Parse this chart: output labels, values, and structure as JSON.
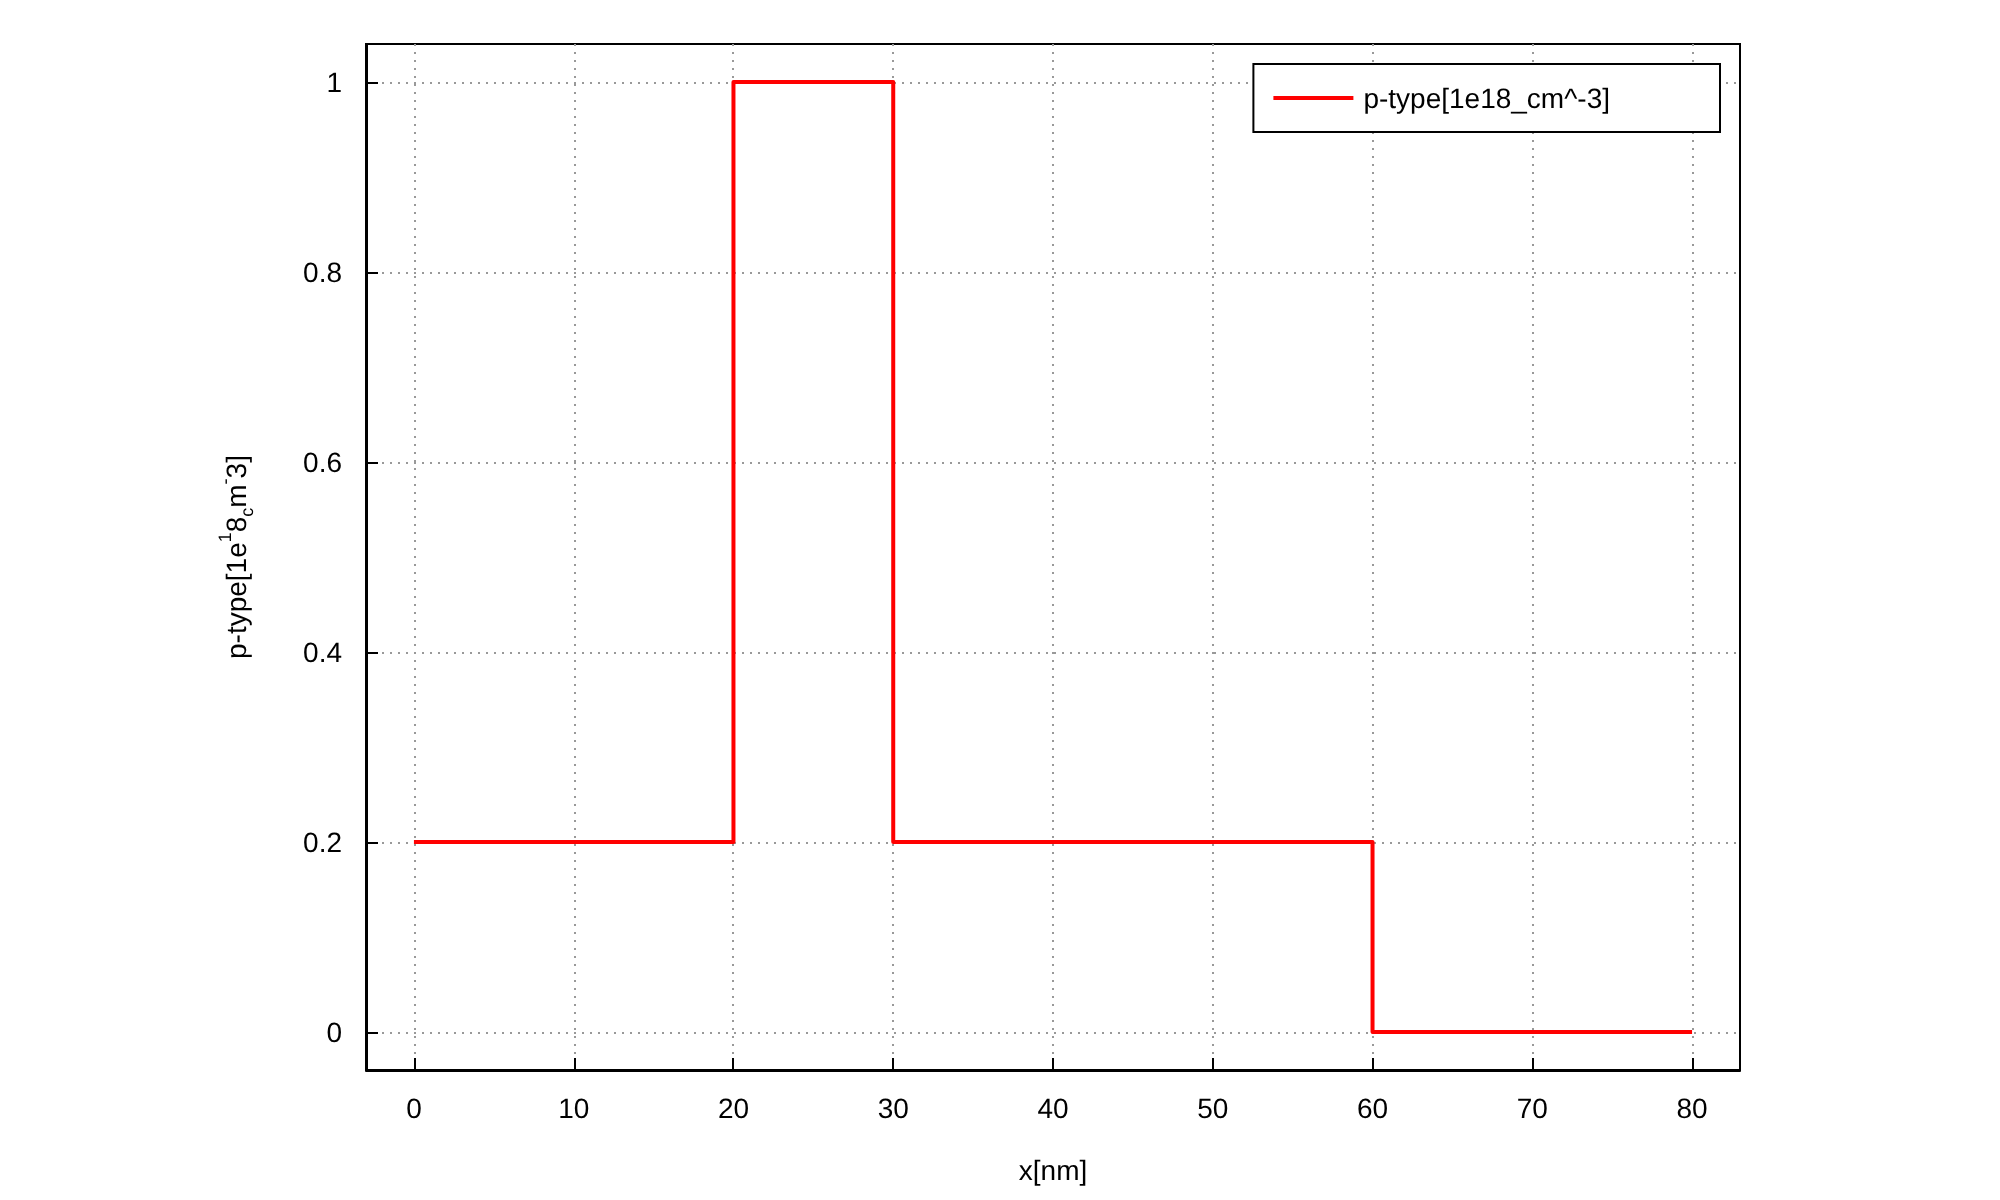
{
  "chart_data": {
    "type": "step",
    "xlabel": "x[nm]",
    "ylabel": "p-type[1e$^{1}$8$_{c}$m$^{-}$3]",
    "x": [
      0,
      20,
      30,
      60,
      80
    ],
    "series": [
      {
        "name": "p-type[1e18_cm^-3]",
        "color": "#ff0000",
        "values": [
          0.2,
          1,
          0.2,
          0,
          0
        ]
      }
    ],
    "xlim": [
      -3,
      83
    ],
    "xticks": [
      0,
      10,
      20,
      30,
      40,
      50,
      60,
      70,
      80
    ],
    "ylim": [
      -0.04,
      1.04
    ],
    "yticks": [
      0,
      0.2,
      0.4,
      0.6,
      0.8,
      1
    ],
    "grid": true,
    "legend": "top right",
    "line_style": "solid",
    "marker": "none"
  }
}
